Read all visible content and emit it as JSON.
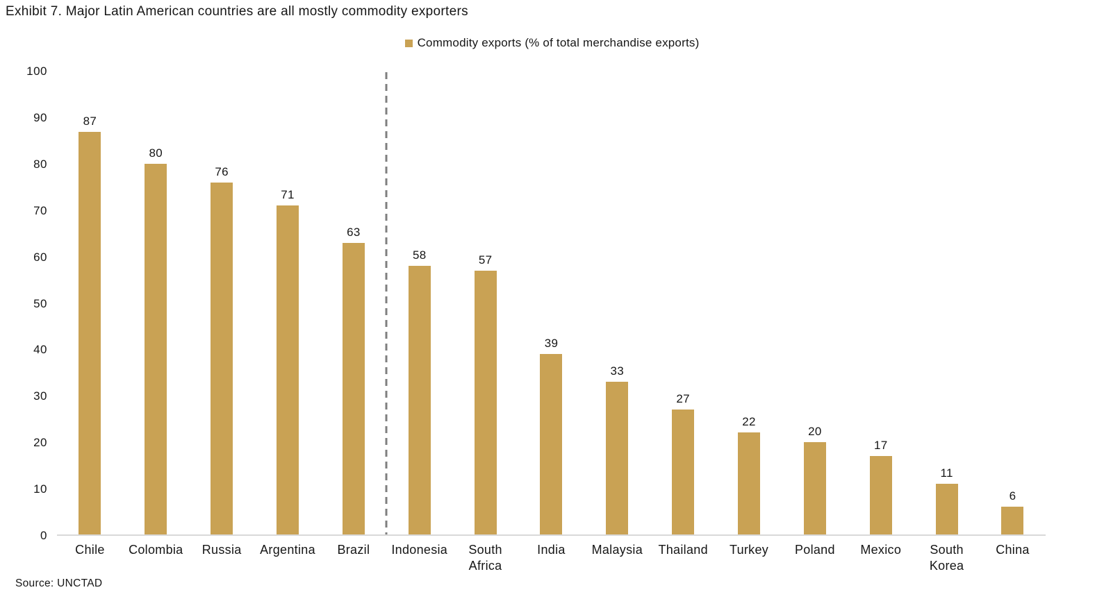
{
  "title": "Exhibit 7. Major Latin American countries are all mostly commodity exporters",
  "source": "Source: UNCTAD",
  "legend": {
    "label": "Commodity exports (% of total merchandise exports)"
  },
  "colors": {
    "bar": "#C9A254",
    "axis_line": "#D9D9D9",
    "divider": "#7F7F7F",
    "text": "#161616"
  },
  "chart_data": {
    "type": "bar",
    "title": "Exhibit 7. Major Latin American countries are all mostly commodity exporters",
    "categories": [
      "Chile",
      "Colombia",
      "Russia",
      "Argentina",
      "Brazil",
      "Indonesia",
      "South\nAfrica",
      "India",
      "Malaysia",
      "Thailand",
      "Turkey",
      "Poland",
      "Mexico",
      "South\nKorea",
      "China"
    ],
    "values": [
      87,
      80,
      76,
      71,
      63,
      58,
      57,
      39,
      33,
      27,
      22,
      20,
      17,
      11,
      6
    ],
    "xlabel": "",
    "ylabel": "",
    "ylim": [
      0,
      100
    ],
    "yticks": [
      0,
      10,
      20,
      30,
      40,
      50,
      60,
      70,
      80,
      90,
      100
    ],
    "grid": false,
    "legend": [
      "Commodity exports (% of total merchandise exports)"
    ],
    "legend_position": "top-center",
    "divider_after_index": 4,
    "bar_value_labels": true
  }
}
